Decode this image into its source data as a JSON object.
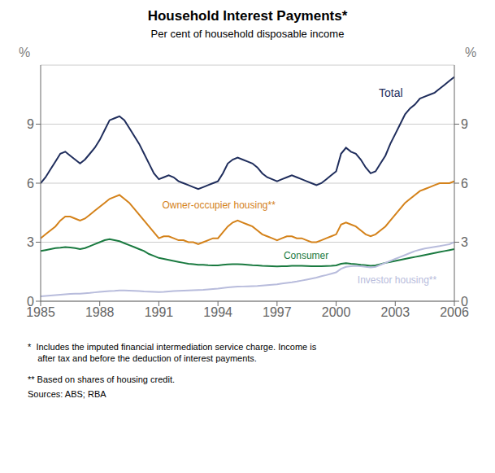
{
  "chart_data": {
    "type": "line",
    "title": "Household Interest Payments*",
    "subtitle": "Per cent of household disposable income",
    "footnotes": [
      "*  Includes the imputed financial intermediation service charge. Income is\n    after tax and before the deduction of interest payments.",
      "** Based on shares of housing credit.",
      "Sources: ABS; RBA"
    ],
    "ylabel": "%",
    "y2label": "%",
    "xlim": [
      1985,
      2006
    ],
    "xticks": [
      1985,
      1988,
      1991,
      1994,
      1997,
      2000,
      2003,
      2006
    ],
    "ylim": [
      0,
      12
    ],
    "yticks": [
      0,
      3,
      6,
      9
    ],
    "y2lim": [
      0,
      12
    ],
    "y2ticks": [
      0,
      3,
      6,
      9
    ],
    "grid": true,
    "x": [
      1985.0,
      1985.25,
      1985.5,
      1985.75,
      1986.0,
      1986.25,
      1986.5,
      1986.75,
      1987.0,
      1987.25,
      1987.5,
      1987.75,
      1988.0,
      1988.25,
      1988.5,
      1988.75,
      1989.0,
      1989.25,
      1989.5,
      1989.75,
      1990.0,
      1990.25,
      1990.5,
      1990.75,
      1991.0,
      1991.25,
      1991.5,
      1991.75,
      1992.0,
      1992.25,
      1992.5,
      1992.75,
      1993.0,
      1993.25,
      1993.5,
      1993.75,
      1994.0,
      1994.25,
      1994.5,
      1994.75,
      1995.0,
      1995.25,
      1995.5,
      1995.75,
      1996.0,
      1996.25,
      1996.5,
      1996.75,
      1997.0,
      1997.25,
      1997.5,
      1997.75,
      1998.0,
      1998.25,
      1998.5,
      1998.75,
      1999.0,
      1999.25,
      1999.5,
      1999.75,
      2000.0,
      2000.25,
      2000.5,
      2000.75,
      2001.0,
      2001.25,
      2001.5,
      2001.75,
      2002.0,
      2002.25,
      2002.5,
      2002.75,
      2003.0,
      2003.25,
      2003.5,
      2003.75,
      2004.0,
      2004.25,
      2004.5,
      2004.75,
      2005.0,
      2005.25,
      2005.5,
      2005.75,
      2006.0
    ],
    "series": [
      {
        "name": "Total",
        "color": "#1f2d5c",
        "values": [
          6.0,
          6.3,
          6.7,
          7.1,
          7.5,
          7.6,
          7.4,
          7.2,
          7.0,
          7.2,
          7.5,
          7.8,
          8.2,
          8.7,
          9.2,
          9.3,
          9.4,
          9.2,
          8.8,
          8.4,
          8.0,
          7.5,
          7.0,
          6.5,
          6.2,
          6.3,
          6.4,
          6.3,
          6.1,
          6.0,
          5.9,
          5.8,
          5.7,
          5.8,
          5.9,
          6.0,
          6.1,
          6.5,
          7.0,
          7.2,
          7.3,
          7.2,
          7.1,
          7.0,
          6.8,
          6.5,
          6.3,
          6.2,
          6.1,
          6.2,
          6.3,
          6.4,
          6.3,
          6.2,
          6.1,
          6.0,
          5.9,
          6.0,
          6.2,
          6.4,
          6.6,
          7.5,
          7.8,
          7.6,
          7.5,
          7.2,
          6.8,
          6.5,
          6.6,
          7.0,
          7.4,
          8.0,
          8.5,
          9.0,
          9.5,
          9.8,
          10.0,
          10.3,
          10.4,
          10.5,
          10.6,
          10.8,
          11.0,
          11.2,
          11.4
        ]
      },
      {
        "name": "Owner-occupier housing**",
        "color": "#d4821a",
        "values": [
          3.2,
          3.4,
          3.6,
          3.8,
          4.1,
          4.3,
          4.3,
          4.2,
          4.1,
          4.2,
          4.4,
          4.6,
          4.8,
          5.0,
          5.2,
          5.3,
          5.4,
          5.2,
          5.0,
          4.7,
          4.4,
          4.1,
          3.8,
          3.5,
          3.2,
          3.3,
          3.3,
          3.2,
          3.1,
          3.1,
          3.0,
          3.0,
          2.9,
          3.0,
          3.1,
          3.2,
          3.2,
          3.5,
          3.8,
          4.0,
          4.1,
          4.0,
          3.9,
          3.8,
          3.6,
          3.4,
          3.3,
          3.2,
          3.1,
          3.2,
          3.3,
          3.3,
          3.2,
          3.2,
          3.1,
          3.0,
          3.0,
          3.1,
          3.2,
          3.3,
          3.4,
          3.9,
          4.0,
          3.9,
          3.8,
          3.6,
          3.4,
          3.3,
          3.4,
          3.6,
          3.8,
          4.1,
          4.4,
          4.7,
          5.0,
          5.2,
          5.4,
          5.6,
          5.7,
          5.8,
          5.9,
          6.0,
          6.0,
          6.0,
          6.1
        ]
      },
      {
        "name": "Consumer",
        "color": "#1a7a40",
        "values": [
          2.55,
          2.6,
          2.65,
          2.7,
          2.72,
          2.75,
          2.73,
          2.7,
          2.65,
          2.7,
          2.8,
          2.9,
          3.0,
          3.1,
          3.15,
          3.1,
          3.05,
          2.95,
          2.85,
          2.75,
          2.65,
          2.55,
          2.4,
          2.3,
          2.2,
          2.15,
          2.1,
          2.05,
          2.0,
          1.95,
          1.9,
          1.88,
          1.85,
          1.85,
          1.83,
          1.82,
          1.82,
          1.85,
          1.87,
          1.88,
          1.88,
          1.87,
          1.85,
          1.83,
          1.82,
          1.8,
          1.79,
          1.78,
          1.77,
          1.78,
          1.78,
          1.8,
          1.8,
          1.8,
          1.79,
          1.78,
          1.78,
          1.78,
          1.79,
          1.8,
          1.82,
          1.9,
          1.93,
          1.9,
          1.88,
          1.85,
          1.83,
          1.8,
          1.82,
          1.88,
          1.95,
          2.0,
          2.05,
          2.1,
          2.15,
          2.2,
          2.25,
          2.3,
          2.35,
          2.4,
          2.45,
          2.5,
          2.55,
          2.6,
          2.65
        ]
      },
      {
        "name": "Investor housing**",
        "color": "#b8bcdc",
        "values": [
          0.25,
          0.27,
          0.29,
          0.31,
          0.33,
          0.35,
          0.37,
          0.38,
          0.38,
          0.4,
          0.42,
          0.45,
          0.48,
          0.5,
          0.52,
          0.53,
          0.55,
          0.55,
          0.54,
          0.53,
          0.52,
          0.5,
          0.49,
          0.48,
          0.47,
          0.48,
          0.5,
          0.52,
          0.53,
          0.54,
          0.55,
          0.56,
          0.57,
          0.58,
          0.6,
          0.62,
          0.64,
          0.67,
          0.7,
          0.72,
          0.74,
          0.75,
          0.76,
          0.77,
          0.78,
          0.8,
          0.82,
          0.84,
          0.86,
          0.9,
          0.93,
          0.96,
          1.0,
          1.05,
          1.1,
          1.15,
          1.2,
          1.27,
          1.33,
          1.4,
          1.47,
          1.65,
          1.75,
          1.78,
          1.8,
          1.78,
          1.75,
          1.72,
          1.75,
          1.85,
          1.95,
          2.05,
          2.15,
          2.25,
          2.35,
          2.45,
          2.55,
          2.62,
          2.68,
          2.72,
          2.76,
          2.8,
          2.85,
          2.9,
          3.0
        ]
      }
    ]
  }
}
